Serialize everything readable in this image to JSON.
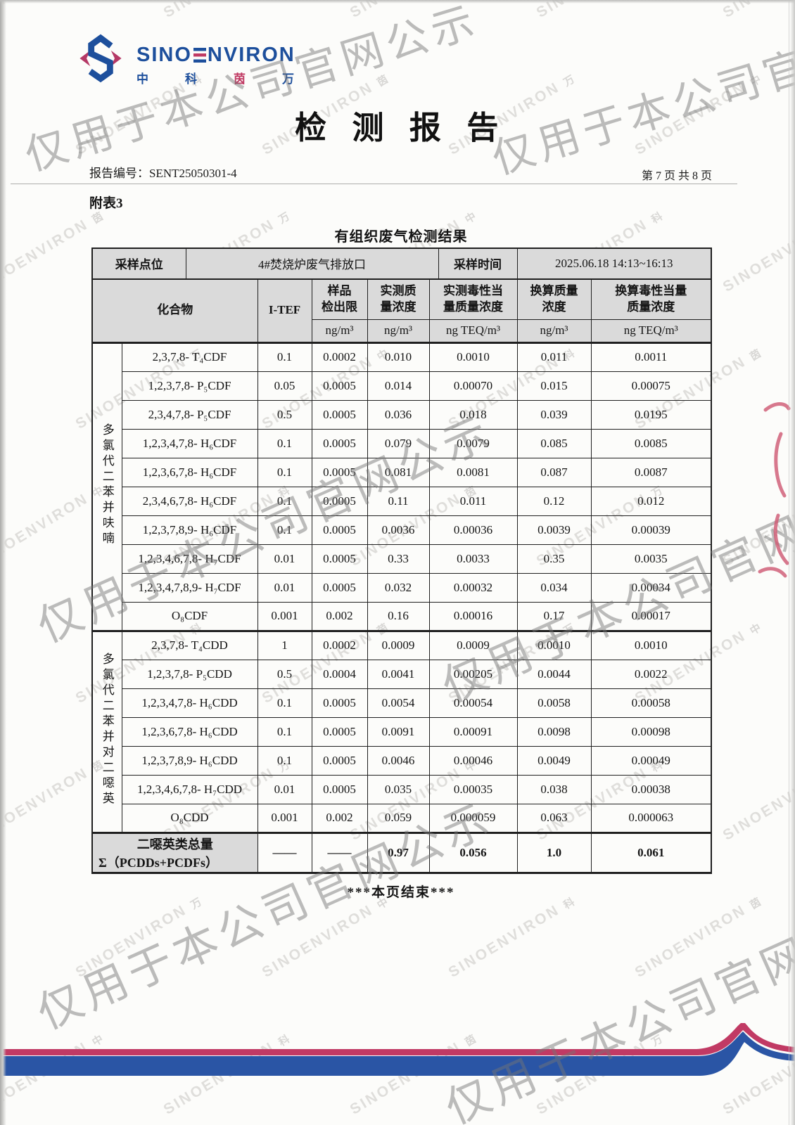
{
  "logo": {
    "brand": "SINOENVIRON",
    "brand_prefix": "SINO",
    "brand_suffix": "NVIRON",
    "cn": [
      "中",
      "科",
      "茵",
      "万"
    ]
  },
  "header": {
    "title": "检 测 报 告",
    "report_no_label": "报告编号：",
    "report_no": "SENT25050301-4",
    "page_info": "第 7 页 共 8 页",
    "appendix": "附表3",
    "table_title": "有组织废气检测结果"
  },
  "info_row": {
    "point_label": "采样点位",
    "point_value": "4#焚烧炉废气排放口",
    "time_label": "采样时间",
    "time_value": "2025.06.18 14:13~16:13"
  },
  "columns": {
    "compound": "化合物",
    "itef": "I-TEF",
    "limit": "样品\n检出限",
    "measured": "实测质\n量浓度",
    "measured_teq": "实测毒性当\n量质量浓度",
    "converted": "换算质量\n浓度",
    "converted_teq": "换算毒性当量\n质量浓度",
    "unit_limit": "ng/m³",
    "unit_measured": "ng/m³",
    "unit_measured_teq": "ng TEQ/m³",
    "unit_converted": "ng/m³",
    "unit_converted_teq": "ng TEQ/m³"
  },
  "groups": [
    {
      "label": "多氯代二苯并呋喃",
      "rows": [
        {
          "name": "2,3,7,8- T₄CDF",
          "v": [
            "0.1",
            "0.0002",
            "0.010",
            "0.0010",
            "0.011",
            "0.0011"
          ]
        },
        {
          "name": "1,2,3,7,8- P₅CDF",
          "v": [
            "0.05",
            "0.0005",
            "0.014",
            "0.00070",
            "0.015",
            "0.00075"
          ]
        },
        {
          "name": "2,3,4,7,8- P₅CDF",
          "v": [
            "0.5",
            "0.0005",
            "0.036",
            "0.018",
            "0.039",
            "0.0195"
          ]
        },
        {
          "name": "1,2,3,4,7,8- H₆CDF",
          "v": [
            "0.1",
            "0.0005",
            "0.079",
            "0.0079",
            "0.085",
            "0.0085"
          ]
        },
        {
          "name": "1,2,3,6,7,8- H₆CDF",
          "v": [
            "0.1",
            "0.0005",
            "0.081",
            "0.0081",
            "0.087",
            "0.0087"
          ]
        },
        {
          "name": "2,3,4,6,7,8- H₆CDF",
          "v": [
            "0.1",
            "0.0005",
            "0.11",
            "0.011",
            "0.12",
            "0.012"
          ]
        },
        {
          "name": "1,2,3,7,8,9- H₆CDF",
          "v": [
            "0.1",
            "0.0005",
            "0.0036",
            "0.00036",
            "0.0039",
            "0.00039"
          ]
        },
        {
          "name": "1,2,3,4,6,7,8- H₇CDF",
          "v": [
            "0.01",
            "0.0005",
            "0.33",
            "0.0033",
            "0.35",
            "0.0035"
          ]
        },
        {
          "name": "1,2,3,4,7,8,9- H₇CDF",
          "v": [
            "0.01",
            "0.0005",
            "0.032",
            "0.00032",
            "0.034",
            "0.00034"
          ]
        },
        {
          "name": "O₈CDF",
          "v": [
            "0.001",
            "0.002",
            "0.16",
            "0.00016",
            "0.17",
            "0.00017"
          ]
        }
      ]
    },
    {
      "label": "多氯代二苯并对二噁英",
      "rows": [
        {
          "name": "2,3,7,8- T₄CDD",
          "v": [
            "1",
            "0.0002",
            "0.0009",
            "0.0009",
            "0.0010",
            "0.0010"
          ]
        },
        {
          "name": "1,2,3,7,8- P₅CDD",
          "v": [
            "0.5",
            "0.0004",
            "0.0041",
            "0.00205",
            "0.0044",
            "0.0022"
          ]
        },
        {
          "name": "1,2,3,4,7,8- H₆CDD",
          "v": [
            "0.1",
            "0.0005",
            "0.0054",
            "0.00054",
            "0.0058",
            "0.00058"
          ]
        },
        {
          "name": "1,2,3,6,7,8- H₆CDD",
          "v": [
            "0.1",
            "0.0005",
            "0.0091",
            "0.00091",
            "0.0098",
            "0.00098"
          ]
        },
        {
          "name": "1,2,3,7,8,9- H₆CDD",
          "v": [
            "0.1",
            "0.0005",
            "0.0046",
            "0.00046",
            "0.0049",
            "0.00049"
          ]
        },
        {
          "name": "1,2,3,4,6,7,8- H₇CDD",
          "v": [
            "0.01",
            "0.0005",
            "0.035",
            "0.00035",
            "0.038",
            "0.00038"
          ]
        },
        {
          "name": "O₈CDD",
          "v": [
            "0.001",
            "0.002",
            "0.059",
            "0.000059",
            "0.063",
            "0.000063"
          ]
        }
      ]
    }
  ],
  "total": {
    "label_line1": "二噁英类总量",
    "label_line2": "Σ（PCDDs+PCDFs）",
    "v": [
      "——",
      "——",
      "0.97",
      "0.056",
      "1.0",
      "0.061"
    ]
  },
  "footer": {
    "end_note": "***本页结束***"
  },
  "watermark": {
    "phrase": "仅用于本公司官网公示",
    "tile": "SINOENVIRON",
    "tile_cn": [
      "中",
      "科",
      "茵",
      "万"
    ]
  },
  "colors": {
    "brand_blue": "#1d4f9c",
    "brand_red": "#c03a63",
    "wave_blue": "#2a55a5",
    "wave_red": "#c13a64",
    "header_bg": "#dadada"
  }
}
